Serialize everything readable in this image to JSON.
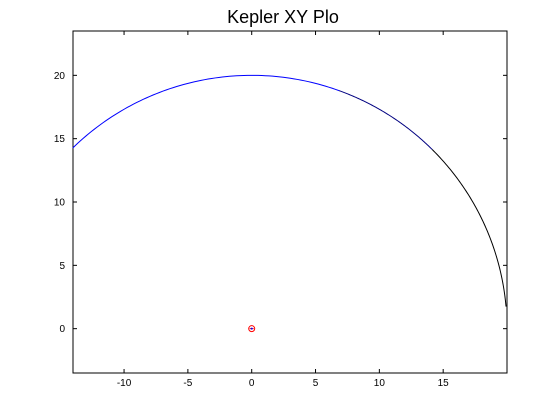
{
  "chart_data": {
    "type": "line",
    "title": "Kepler XY Plo",
    "xlabel": "",
    "ylabel": "",
    "xlim": [
      -14,
      20
    ],
    "ylim": [
      -3.5,
      23.5
    ],
    "grid": false,
    "x_ticks": [
      -10,
      -5,
      0,
      5,
      10,
      15
    ],
    "y_ticks": [
      0,
      5,
      10,
      15,
      20
    ],
    "orbit": {
      "type": "circle",
      "center": [
        0,
        0
      ],
      "radius": 20,
      "theta_start_deg": 5,
      "theta_end_deg": 134.5,
      "colors": {
        "segment_1": "#000000",
        "segment_2": "#000080",
        "segment_3": "#0000ff"
      },
      "segments_deg": [
        [
          5,
          45
        ],
        [
          45,
          70
        ],
        [
          70,
          134.5
        ]
      ]
    },
    "focus_marker": {
      "x": 0,
      "y": 0,
      "color": "#ff0000",
      "inner_color": "#0000ff"
    }
  }
}
